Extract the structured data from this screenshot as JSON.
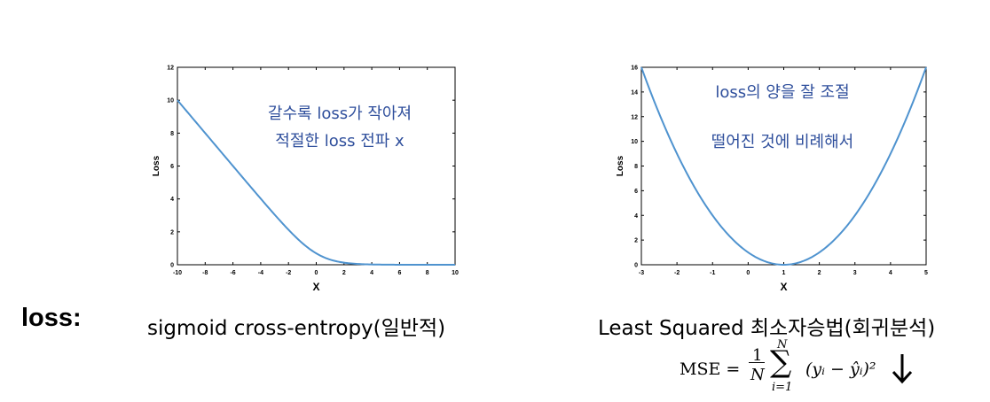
{
  "chart_data": [
    {
      "type": "line",
      "xlabel": "X",
      "ylabel": "Loss",
      "xlim": [
        -10,
        10
      ],
      "ylim": [
        0,
        12
      ],
      "xticks": [
        "-10",
        "-8",
        "-6",
        "-4",
        "-2",
        "0",
        "2",
        "4",
        "6",
        "8",
        "10"
      ],
      "yticks": [
        "0",
        "2",
        "4",
        "6",
        "8",
        "10",
        "12"
      ],
      "series_color": "#4f93cf",
      "function": "softplus(-x)",
      "x": [
        -10,
        -8,
        -6,
        -4,
        -2,
        -1,
        0,
        1,
        2,
        3,
        4,
        6,
        8,
        10
      ],
      "y": [
        10.0,
        8.0,
        6.0,
        4.02,
        2.13,
        1.31,
        0.69,
        0.31,
        0.13,
        0.05,
        0.02,
        0.0,
        0.0,
        0.0
      ],
      "annotations": [
        "갈수록 loss가 작아져",
        "적절한 loss 전파 x"
      ],
      "annotation_color": "#2f4f9c"
    },
    {
      "type": "line",
      "xlabel": "X",
      "ylabel": "Loss",
      "xlim": [
        -3,
        5
      ],
      "ylim": [
        0,
        16
      ],
      "xticks": [
        "-3",
        "-2",
        "-1",
        "0",
        "1",
        "2",
        "3",
        "4",
        "5"
      ],
      "yticks": [
        "0",
        "2",
        "4",
        "6",
        "8",
        "10",
        "12",
        "14",
        "16"
      ],
      "series_color": "#4f93cf",
      "function": "(x-1)^2",
      "x": [
        -3,
        -2,
        -1,
        0,
        1,
        2,
        3,
        4,
        5
      ],
      "y": [
        16,
        9,
        4,
        1,
        0,
        1,
        4,
        9,
        16
      ],
      "annotations": [
        "loss의 양을 잘 조절",
        "떨어진 것에 비례해서"
      ],
      "annotation_color": "#2f4f9c"
    }
  ],
  "labels": {
    "loss": "loss:",
    "left_caption": "sigmoid cross-entropy(일반적)",
    "right_caption": "Least Squared 최소자승법(회귀분석)"
  },
  "formula": {
    "lhs": "MSE =",
    "frac_num": "1",
    "frac_den": "N",
    "sum_top": "N",
    "sum_bottom": "i=1",
    "body": "(yᵢ − ŷᵢ)²",
    "arrow": "down-arrow-icon"
  }
}
